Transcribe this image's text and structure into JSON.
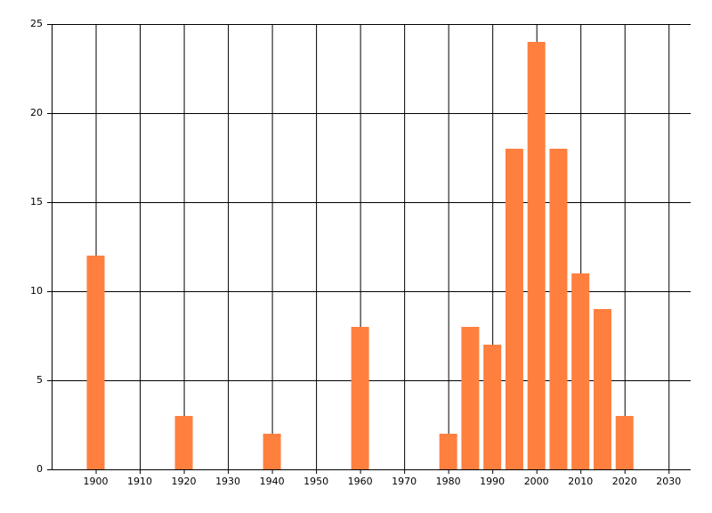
{
  "chart_data": {
    "type": "bar",
    "x": [
      1900,
      1920,
      1940,
      1960,
      1980,
      1985,
      1990,
      1995,
      2000,
      2005,
      2010,
      2015,
      2020
    ],
    "values": [
      12,
      3,
      2,
      8,
      2,
      8,
      7,
      18,
      24,
      18,
      11,
      9,
      3
    ],
    "color": "#ff7f3f",
    "xlim": [
      1890,
      2035
    ],
    "xticks": [
      1900,
      1910,
      1920,
      1930,
      1940,
      1950,
      1960,
      1970,
      1980,
      1990,
      2000,
      2010,
      2020,
      2030
    ],
    "ylim": [
      0,
      25
    ],
    "yticks": [
      0,
      5,
      10,
      15,
      20,
      25
    ],
    "grid": true
  }
}
